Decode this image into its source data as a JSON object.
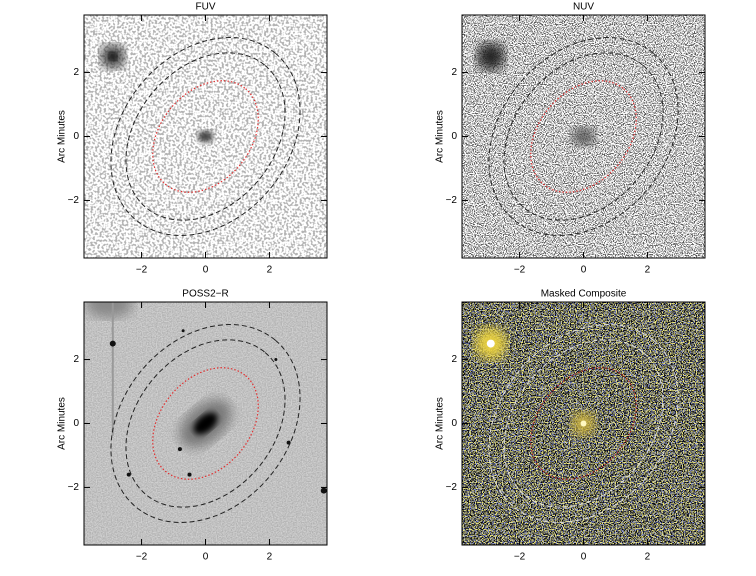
{
  "chart_data": [
    {
      "type": "image",
      "title": "FUV",
      "ylabel": "Arc Minutes",
      "xlim": [
        -3.8,
        3.8
      ],
      "ylim": [
        -3.8,
        3.8
      ],
      "xticks": [
        {
          "value": -2,
          "label": "−2"
        },
        0,
        2
      ],
      "yticks": [
        {
          "value": -2,
          "label": "−2"
        },
        0,
        2
      ]
    },
    {
      "type": "image",
      "title": "NUV",
      "ylabel": "Arc Minutes",
      "xlim": [
        -3.8,
        3.8
      ],
      "ylim": [
        -3.8,
        3.8
      ],
      "xticks": [
        {
          "value": -2,
          "label": "−2"
        },
        0,
        2
      ],
      "yticks": [
        {
          "value": -2,
          "label": "−2"
        },
        0,
        2
      ]
    },
    {
      "type": "image",
      "title": "POSS2−R",
      "ylabel": "Arc Minutes",
      "xlim": [
        -3.8,
        3.8
      ],
      "ylim": [
        -3.8,
        3.8
      ],
      "xticks": [
        {
          "value": -2,
          "label": "−2"
        },
        0,
        2
      ],
      "yticks": [
        {
          "value": -2,
          "label": "−2"
        },
        0,
        2
      ]
    },
    {
      "type": "image",
      "title": "Masked Composite",
      "ylabel": "Arc Minutes",
      "xlim": [
        -3.8,
        3.8
      ],
      "ylim": [
        -3.8,
        3.8
      ],
      "xticks": [
        {
          "value": -2,
          "label": "−2"
        },
        0,
        2
      ],
      "yticks": [
        {
          "value": -2,
          "label": "−2"
        },
        0,
        2
      ]
    }
  ]
}
